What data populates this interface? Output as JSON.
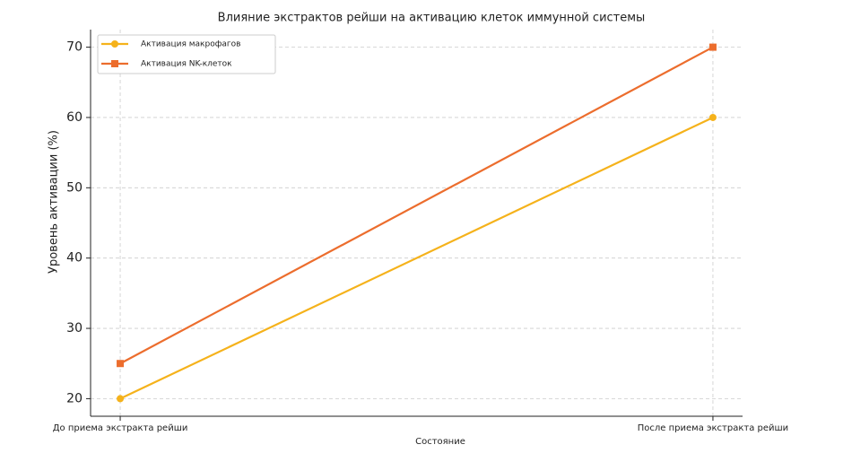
{
  "chart_data": {
    "type": "line",
    "title": "Влияние экстрактов рейши на активацию клеток иммунной системы",
    "x_label": "Состояние",
    "y_label": "Уровень активации (%)",
    "categories": [
      "До приема экстракта рейши",
      "После приема экстракта рейши"
    ],
    "series": [
      {
        "name": "Активация макрофагов",
        "color": "#f5b21b",
        "marker": "circle",
        "values": [
          20,
          60
        ]
      },
      {
        "name": "Активация NK-клеток",
        "color": "#ec6d2d",
        "marker": "square",
        "values": [
          25,
          70
        ]
      }
    ],
    "ylim": [
      17.5,
      72.5
    ],
    "yticks": [
      20,
      30,
      40,
      50,
      60,
      70
    ],
    "grid": true,
    "legend": "upper-left"
  }
}
